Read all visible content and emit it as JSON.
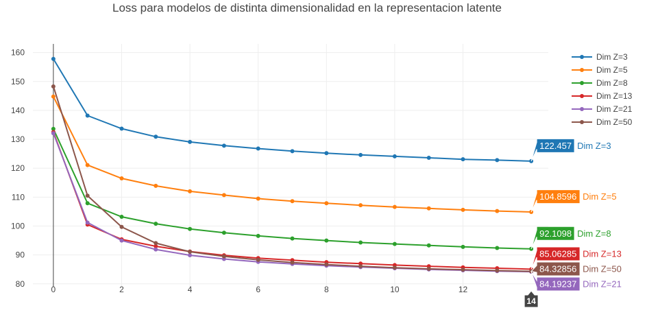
{
  "chart_data": {
    "type": "line",
    "title": "Loss para modelos de distinta dimensionalidad en la representacion latente",
    "xlabel": "",
    "ylabel": "",
    "xlim": [
      -0.6,
      14.5
    ],
    "ylim": [
      79,
      163
    ],
    "x_ticks": [
      0,
      2,
      4,
      6,
      8,
      10,
      12
    ],
    "y_ticks": [
      80,
      90,
      100,
      110,
      120,
      130,
      140,
      150,
      160
    ],
    "legend_position": "top-right",
    "grid": true,
    "hover_x_label": "14",
    "x": [
      0,
      1,
      2,
      3,
      4,
      5,
      6,
      7,
      8,
      9,
      10,
      11,
      12,
      13,
      14
    ],
    "series": [
      {
        "name": "Dim Z=3",
        "color": "#1f77b4",
        "hover_value": "122.457",
        "values": [
          157.8,
          138.2,
          133.7,
          130.9,
          129.1,
          127.8,
          126.8,
          125.9,
          125.2,
          124.6,
          124.1,
          123.6,
          123.1,
          122.8,
          122.457
        ]
      },
      {
        "name": "Dim Z=5",
        "color": "#ff7f0e",
        "hover_value": "104.8596",
        "values": [
          144.8,
          121.1,
          116.5,
          113.9,
          112.0,
          110.7,
          109.5,
          108.6,
          107.9,
          107.2,
          106.6,
          106.1,
          105.6,
          105.2,
          104.8596
        ]
      },
      {
        "name": "Dim Z=8",
        "color": "#2ca02c",
        "hover_value": "92.1098",
        "values": [
          133.6,
          107.9,
          103.2,
          100.8,
          99.0,
          97.7,
          96.6,
          95.7,
          95.0,
          94.3,
          93.8,
          93.3,
          92.8,
          92.4,
          92.1098
        ]
      },
      {
        "name": "Dim Z=13",
        "color": "#d62728",
        "hover_value": "85.06285",
        "values": [
          132.5,
          100.5,
          95.4,
          93.0,
          91.2,
          89.9,
          88.9,
          88.2,
          87.5,
          87.0,
          86.5,
          86.1,
          85.7,
          85.4,
          85.06285
        ]
      },
      {
        "name": "Dim Z=21",
        "color": "#9467bd",
        "hover_value": "84.19237",
        "values": [
          132.1,
          101.2,
          95.0,
          91.9,
          89.9,
          88.6,
          87.6,
          86.9,
          86.3,
          85.8,
          85.4,
          85.0,
          84.7,
          84.4,
          84.19237
        ]
      },
      {
        "name": "Dim Z=50",
        "color": "#8c564b",
        "hover_value": "84.32856",
        "values": [
          148.3,
          110.5,
          99.7,
          94.1,
          91.1,
          89.5,
          88.3,
          87.4,
          86.7,
          86.1,
          85.6,
          85.2,
          84.9,
          84.6,
          84.32856
        ]
      }
    ]
  }
}
